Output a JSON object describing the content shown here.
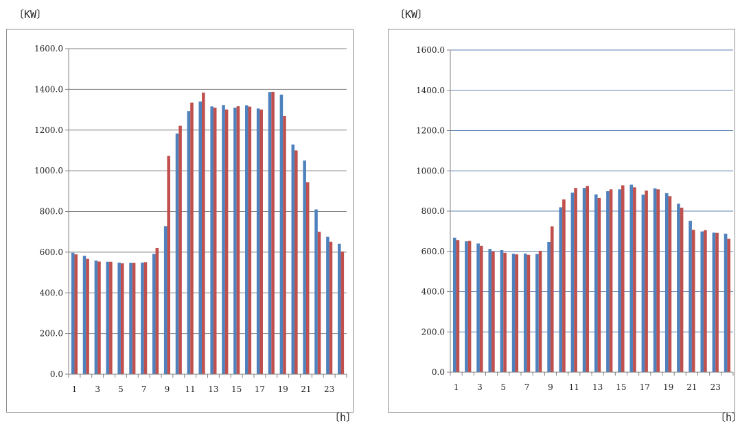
{
  "charts": [
    {
      "y_unit": "〔KW〕",
      "x_unit": "〔h〕"
    },
    {
      "y_unit": "〔KW〕",
      "x_unit": "〔h〕"
    }
  ],
  "colors": {
    "series_1": "#4f81bd",
    "series_2": "#c0504d",
    "grid": "#7f7f7f",
    "axis": "#7f7f7f"
  },
  "chart_data": [
    {
      "type": "bar",
      "ylabel": "〔KW〕",
      "xlabel": "〔h〕",
      "ylim": [
        0,
        1600
      ],
      "yticks": [
        "0.0",
        "200.0",
        "400.0",
        "600.0",
        "800.0",
        "1000.0",
        "1200.0",
        "1400.0",
        "1600.0"
      ],
      "xtick_labels": [
        "1",
        "3",
        "5",
        "7",
        "9",
        "11",
        "13",
        "15",
        "17",
        "19",
        "21",
        "23"
      ],
      "grid": "horizontal",
      "categories": [
        "1",
        "2",
        "3",
        "4",
        "5",
        "6",
        "7",
        "8",
        "9",
        "10",
        "11",
        "12",
        "13",
        "14",
        "15",
        "16",
        "17",
        "18",
        "19",
        "20",
        "21",
        "22",
        "23",
        "24"
      ],
      "series": [
        {
          "values": [
            597,
            582,
            558,
            553,
            548,
            547,
            548,
            591,
            727,
            1183,
            1293,
            1340,
            1316,
            1323,
            1310,
            1322,
            1306,
            1387,
            1374,
            1129,
            1050,
            810,
            675,
            641
          ]
        },
        {
          "values": [
            589,
            567,
            554,
            553,
            545,
            547,
            551,
            620,
            1073,
            1221,
            1335,
            1384,
            1310,
            1301,
            1317,
            1315,
            1301,
            1388,
            1270,
            1100,
            943,
            700,
            651,
            603
          ]
        }
      ]
    },
    {
      "type": "bar",
      "ylabel": "〔KW〕",
      "xlabel": "〔h〕",
      "ylim": [
        0,
        1600
      ],
      "yticks": [
        "0.0",
        "200.0",
        "400.0",
        "600.0",
        "800.0",
        "1000.0",
        "1200.0",
        "1400.0",
        "1600.0"
      ],
      "xtick_labels": [
        "1",
        "3",
        "5",
        "7",
        "9",
        "11",
        "13",
        "15",
        "17",
        "19",
        "21",
        "23"
      ],
      "grid": "horizontal",
      "categories": [
        "1",
        "2",
        "3",
        "4",
        "5",
        "6",
        "7",
        "8",
        "9",
        "10",
        "11",
        "12",
        "13",
        "14",
        "15",
        "16",
        "17",
        "18",
        "19",
        "20",
        "21",
        "22",
        "23",
        "24"
      ],
      "series": [
        {
          "values": [
            668,
            650,
            639,
            612,
            606,
            588,
            589,
            587,
            647,
            819,
            892,
            915,
            883,
            899,
            908,
            931,
            882,
            913,
            889,
            837,
            752,
            699,
            693,
            688
          ]
        },
        {
          "values": [
            656,
            652,
            627,
            600,
            593,
            585,
            583,
            603,
            724,
            858,
            915,
            925,
            865,
            908,
            928,
            918,
            902,
            908,
            874,
            817,
            707,
            705,
            692,
            662
          ]
        }
      ]
    }
  ]
}
